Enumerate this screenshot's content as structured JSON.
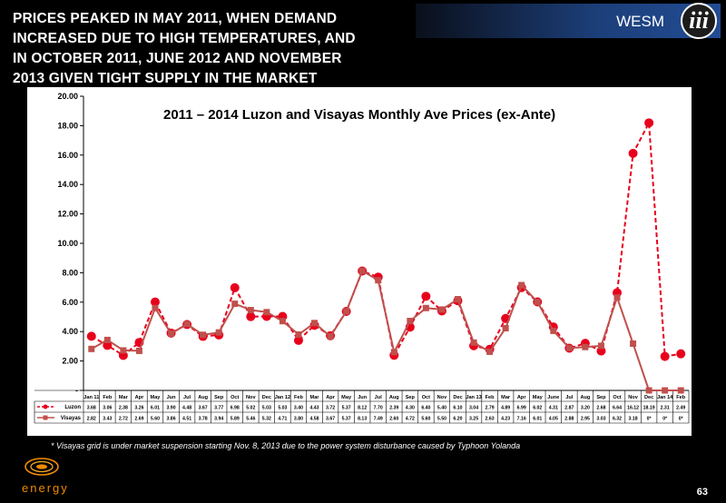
{
  "headline": "PRICES PEAKED IN MAY 2011, WHEN DEMAND INCREASED DUE TO HIGH TEMPERATURES,  AND IN OCTOBER 2011, JUNE 2012 AND NOVEMBER 2013 GIVEN TIGHT SUPPLY IN THE MARKET",
  "banner": {
    "text": "WESM",
    "numeral": "iii"
  },
  "footnote": "* Visayas grid is under market suspension starting Nov. 8, 2013 due to the power system disturbance caused by Typhoon Yolanda",
  "page_number": "63",
  "logo": {
    "text": "energy"
  },
  "colors": {
    "luzon": "#e8001c",
    "visayas": "#c0504d",
    "background": "#000000",
    "plot_bg": "#ffffff"
  },
  "chart_data": {
    "type": "line",
    "title": "2011 – 2014 Luzon and Visayas Monthly Ave Prices (ex-Ante)",
    "ylim": [
      0,
      20
    ],
    "yticks": [
      "-",
      "2.00",
      "4.00",
      "6.00",
      "8.00",
      "10.00",
      "12.00",
      "14.00",
      "16.00",
      "18.00",
      "20.00"
    ],
    "grid": false,
    "legend": "data-table",
    "categories": [
      "Jan 11",
      "Feb",
      "Mar",
      "Apr",
      "May",
      "Jun",
      "Jul",
      "Aug",
      "Sep",
      "Oct",
      "Nov",
      "Dec",
      "Jan 12",
      "Feb",
      "Mar",
      "Apr",
      "May",
      "Jun",
      "Jul",
      "Aug",
      "Sep",
      "Oct",
      "Nov",
      "Dec",
      "Jan 13",
      "Feb",
      "Mar",
      "Apr",
      "May",
      "June",
      "Jul",
      "Aug",
      "Sep",
      "Oct",
      "Nov",
      "Dec",
      "Jan 14",
      "Feb"
    ],
    "series": [
      {
        "name": "Luzon",
        "style": "dashed-circle",
        "values": [
          3.68,
          3.06,
          2.38,
          3.26,
          6.01,
          3.9,
          4.48,
          3.67,
          3.77,
          6.98,
          5.02,
          5.03,
          5.03,
          3.4,
          4.43,
          3.72,
          5.37,
          8.12,
          7.7,
          2.39,
          4.3,
          6.4,
          5.4,
          6.1,
          3.04,
          2.79,
          4.89,
          6.99,
          6.02,
          4.31,
          2.87,
          3.2,
          2.68,
          6.64,
          16.12,
          18.19,
          2.31,
          2.49
        ],
        "labels": [
          "3.68",
          "3.06",
          "2.38",
          "3.26",
          "6.01",
          "3.90",
          "4.48",
          "3.67",
          "3.77",
          "6.98",
          "5.02",
          "5.03",
          "5.03",
          "3.40",
          "4.43",
          "3.72",
          "5.37",
          "8.12",
          "7.70",
          "2.39",
          "4.30",
          "6.40",
          "5.40",
          "6.10",
          "3.04",
          "2.79",
          "4.89",
          "6.99",
          "6.02",
          "4.31",
          "2.87",
          "3.20",
          "2.68",
          "6.64",
          "16.12",
          "18.19",
          "2.31",
          "2.49"
        ]
      },
      {
        "name": "Visayas",
        "style": "solid-square",
        "values": [
          2.82,
          3.43,
          2.72,
          2.69,
          5.6,
          3.86,
          4.51,
          3.78,
          3.94,
          5.89,
          5.46,
          5.32,
          4.71,
          3.8,
          4.58,
          3.67,
          5.37,
          8.13,
          7.49,
          2.6,
          4.72,
          5.6,
          5.5,
          6.2,
          3.25,
          2.63,
          4.23,
          7.16,
          6.01,
          4.05,
          2.88,
          2.95,
          3.03,
          6.32,
          3.18,
          0,
          0,
          0
        ],
        "labels": [
          "2.82",
          "3.43",
          "2.72",
          "2.69",
          "5.60",
          "3.86",
          "4.51",
          "3.78",
          "3.94",
          "5.89",
          "5.46",
          "5.32",
          "4.71",
          "3.80",
          "4.58",
          "3.67",
          "5.37",
          "8.13",
          "7.49",
          "2.60",
          "4.72",
          "5.60",
          "5.50",
          "6.20",
          "3.25",
          "2.63",
          "4.23",
          "7.16",
          "6.01",
          "4.05",
          "2.88",
          "2.95",
          "3.03",
          "6.32",
          "3.18",
          "0*",
          "0*",
          "0*"
        ]
      }
    ]
  }
}
